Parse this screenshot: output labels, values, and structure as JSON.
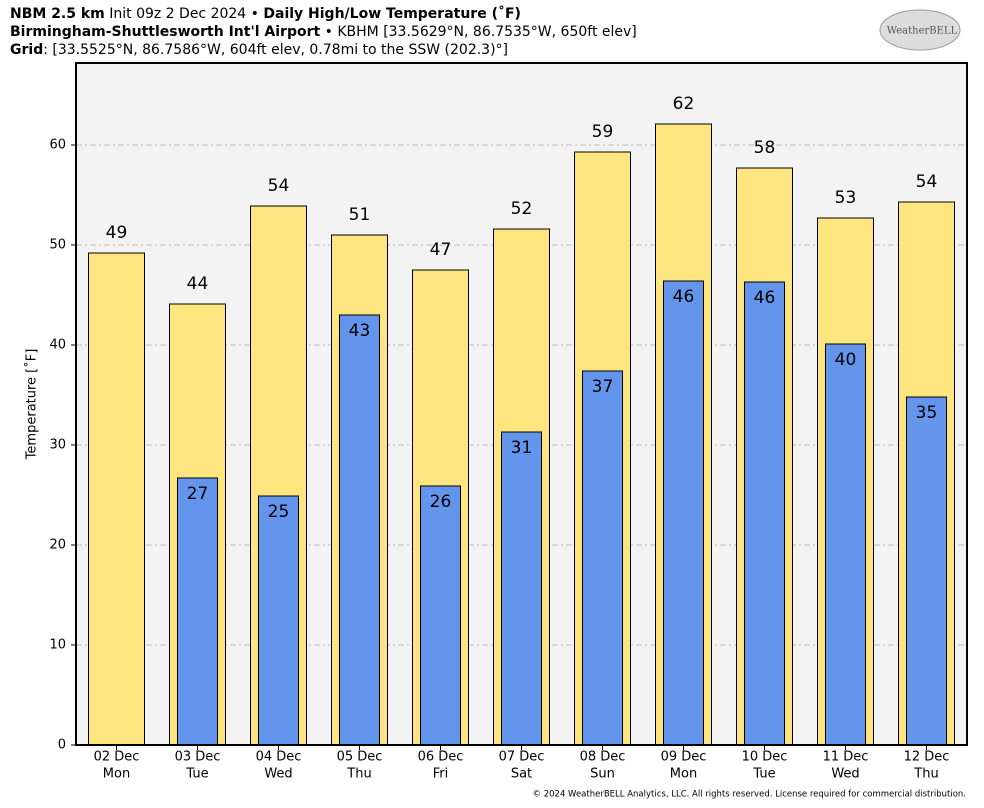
{
  "header": {
    "lines": [
      [
        {
          "text": "NBM 2.5 km",
          "bold": true
        },
        {
          "text": " Init 09z 2 Dec 2024 • ",
          "bold": false
        },
        {
          "text": "Daily High/Low Temperature (˚F)",
          "bold": true
        }
      ],
      [
        {
          "text": "Birmingham-Shuttlesworth Int'l Airport",
          "bold": true
        },
        {
          "text": " • KBHM [33.5629°N, 86.7535°W, 650ft elev]",
          "bold": false
        }
      ],
      [
        {
          "text": "Grid",
          "bold": true
        },
        {
          "text": ": [33.5525°N, 86.7586°W, 604ft elev, 0.78mi to the SSW (202.3)°]",
          "bold": false
        }
      ]
    ]
  },
  "logo": "WeatherBELL",
  "footer": "© 2024 WeatherBELL Analytics, LLC. All rights reserved. License required for commercial distribution.",
  "chart_data": {
    "type": "bar",
    "ylabel": "Temperature [˚F]",
    "categories": [
      [
        "02 Dec",
        "Mon"
      ],
      [
        "03 Dec",
        "Tue"
      ],
      [
        "04 Dec",
        "Wed"
      ],
      [
        "05 Dec",
        "Thu"
      ],
      [
        "06 Dec",
        "Fri"
      ],
      [
        "07 Dec",
        "Sat"
      ],
      [
        "08 Dec",
        "Sun"
      ],
      [
        "09 Dec",
        "Mon"
      ],
      [
        "10 Dec",
        "Tue"
      ],
      [
        "11 Dec",
        "Wed"
      ],
      [
        "12 Dec",
        "Thu"
      ]
    ],
    "series": [
      {
        "name": "High",
        "color": "#ffe57f",
        "values": [
          49.2,
          44.1,
          53.9,
          51.0,
          47.5,
          51.6,
          59.3,
          62.1,
          57.7,
          52.7,
          54.3
        ],
        "value_labels": [
          "49",
          "44",
          "54",
          "51",
          "47",
          "52",
          "59",
          "62",
          "58",
          "53",
          "54"
        ]
      },
      {
        "name": "Low",
        "color": "#6495ed",
        "values": [
          null,
          26.7,
          24.9,
          43.0,
          25.9,
          31.3,
          37.4,
          46.4,
          46.3,
          40.1,
          34.8
        ],
        "value_labels": [
          null,
          "27",
          "25",
          "43",
          "26",
          "31",
          "37",
          "46",
          "46",
          "40",
          "35"
        ]
      }
    ],
    "ylim": [
      0,
      68.2
    ],
    "yticks": [
      0,
      10,
      20,
      30,
      40,
      50,
      60
    ],
    "grid": true
  }
}
